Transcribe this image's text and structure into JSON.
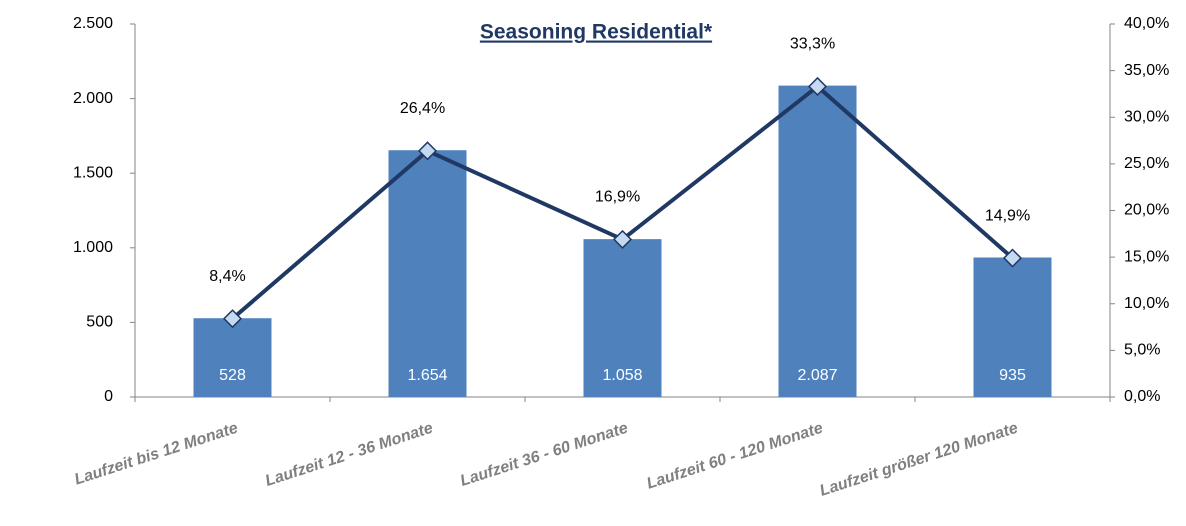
{
  "chart_data": {
    "type": "bar",
    "title": "Seasoning Residential*",
    "categories": [
      "Laufzeit bis 12 Monate",
      "Laufzeit 12 - 36 Monate",
      "Laufzeit 36 - 60 Monate",
      "Laufzeit 60 - 120 Monate",
      "Laufzeit größer 120 Monate"
    ],
    "series": [
      {
        "type": "bar",
        "color": "#4f81bd",
        "values": [
          528,
          1654,
          1058,
          2087,
          935
        ],
        "value_labels": [
          "528",
          "1.654",
          "1.058",
          "2.087",
          "935"
        ]
      },
      {
        "type": "line",
        "axis": "y2",
        "color": "#1f3864",
        "marker_color": "#c5d9f1",
        "values": [
          8.4,
          26.4,
          16.9,
          33.3,
          14.9
        ],
        "value_labels": [
          "8,4%",
          "26,4%",
          "16,9%",
          "33,3%",
          "14,9%"
        ]
      }
    ],
    "ylim": [
      0,
      2500
    ],
    "yticks": [
      0,
      500,
      {
        "value": 1000,
        "label": "1.000"
      },
      {
        "value": 1500,
        "label": "1.500"
      },
      {
        "value": 2000,
        "label": "2.000"
      },
      {
        "value": 2500,
        "label": "2.500"
      }
    ],
    "y2lim": [
      0,
      40
    ],
    "y2ticks": [
      {
        "value": 0,
        "label": "0,0%"
      },
      {
        "value": 5,
        "label": "5,0%"
      },
      {
        "value": 10,
        "label": "10,0%"
      },
      {
        "value": 15,
        "label": "15,0%"
      },
      {
        "value": 20,
        "label": "20,0%"
      },
      {
        "value": 25,
        "label": "25,0%"
      },
      {
        "value": 30,
        "label": "30,0%"
      },
      {
        "value": 35,
        "label": "35,0%"
      },
      {
        "value": 40,
        "label": "40,0%"
      }
    ]
  }
}
